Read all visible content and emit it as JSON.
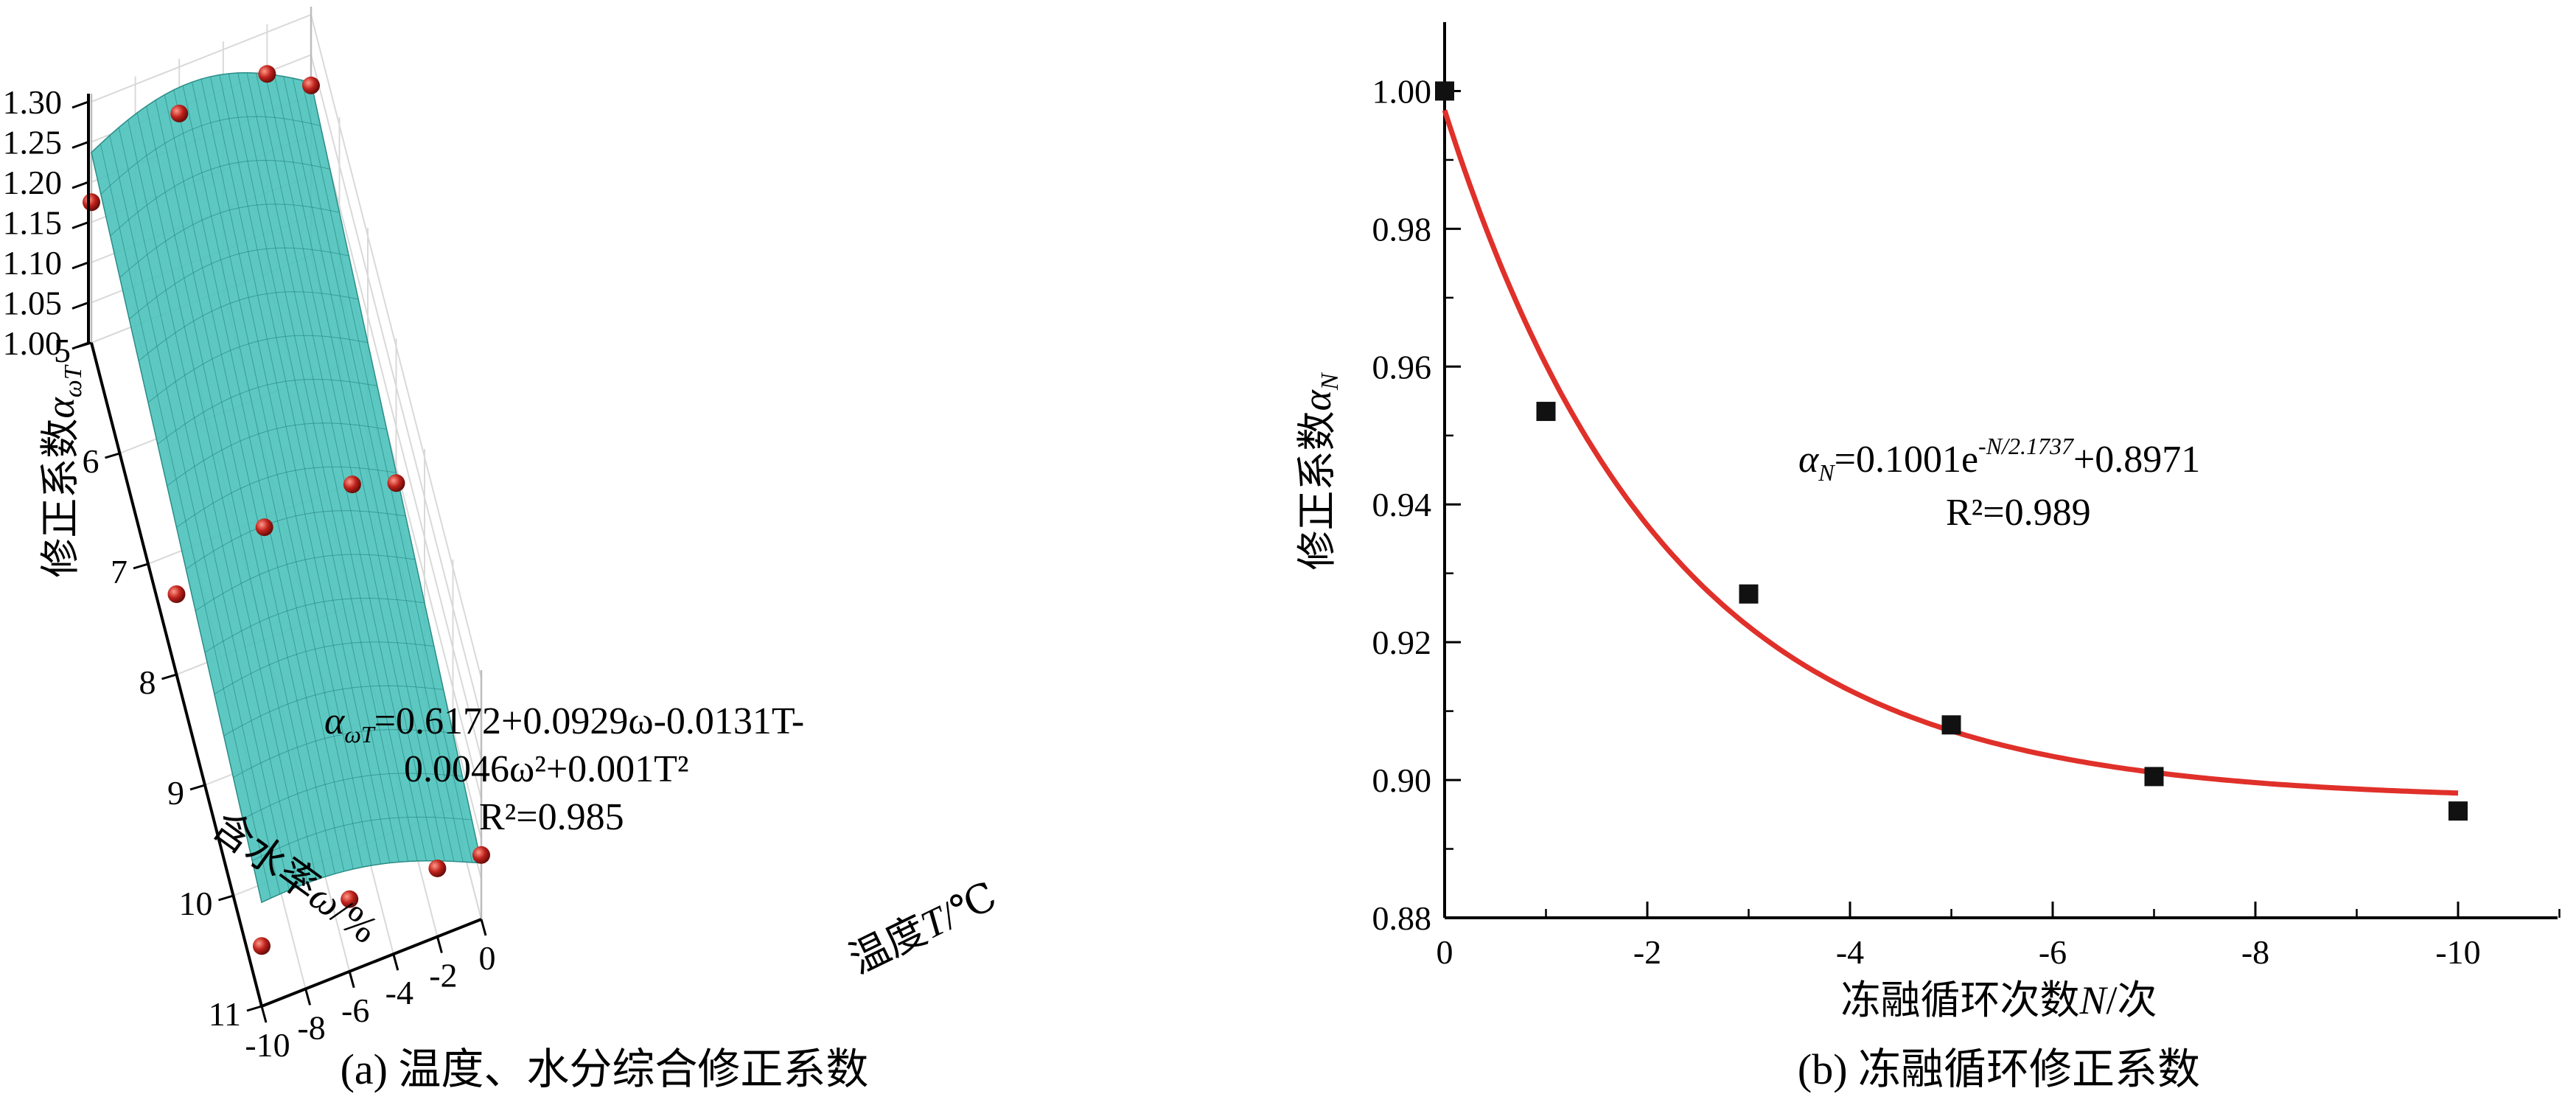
{
  "chart_data": [
    {
      "type": "3d-surface-scatter",
      "caption": "(a) 温度、水分综合修正系数",
      "xlabel": "含水率ω/%",
      "ylabel": "温度T/℃",
      "zlabel": "修正系数α_ωT",
      "xlabel_parts": {
        "pre": "含水率",
        "var": "ω",
        "post": "/%"
      },
      "ylabel_parts": {
        "pre": "温度",
        "var": "T",
        "post": "/℃"
      },
      "zlabel_parts": {
        "pre": "修正系数",
        "var": "α",
        "sub": "ωT"
      },
      "x_ticks": [
        "5",
        "6",
        "7",
        "8",
        "9",
        "10",
        "11"
      ],
      "y_ticks": [
        "-10",
        "-8",
        "-6",
        "-4",
        "-2",
        "0"
      ],
      "z_ticks": [
        "1.00",
        "1.05",
        "1.10",
        "1.15",
        "1.20",
        "1.25",
        "1.30"
      ],
      "xlim": [
        5,
        11
      ],
      "ylim": [
        -10,
        0
      ],
      "zlim": [
        1.0,
        1.3
      ],
      "surface_color": "#4fc3bd",
      "point_color": "#c0221c",
      "equation": {
        "lhs_var": "α",
        "lhs_sub": "ωT",
        "line1": "=0.6172+0.0929ω-0.0131T-",
        "line2": "0.0046ω²+0.001T²",
        "r2": "R²=0.985"
      },
      "points": [
        {
          "x": 5,
          "y": -10,
          "z": 1.175
        },
        {
          "x": 5,
          "y": -6,
          "z": 1.242
        },
        {
          "x": 5,
          "y": -2,
          "z": 1.248
        },
        {
          "x": 5,
          "y": 0,
          "z": 1.212
        },
        {
          "x": 8,
          "y": -10,
          "z": 1.1
        },
        {
          "x": 8,
          "y": -6,
          "z": 1.14
        },
        {
          "x": 8,
          "y": -2,
          "z": 1.15
        },
        {
          "x": 8,
          "y": 0,
          "z": 1.13
        },
        {
          "x": 11,
          "y": -10,
          "z": 1.075
        },
        {
          "x": 11,
          "y": -6,
          "z": 1.09
        },
        {
          "x": 11,
          "y": -2,
          "z": 1.085
        },
        {
          "x": 11,
          "y": 0,
          "z": 1.08
        }
      ]
    },
    {
      "type": "scatter",
      "caption": "(b) 冻融循环修正系数",
      "xlabel": "冻融循环次数N/次",
      "ylabel": "修正系数α_N",
      "xlabel_parts": {
        "pre": "冻融循环次数",
        "var": "N",
        "post": "/次"
      },
      "ylabel_parts": {
        "pre": "修正系数",
        "var": "α",
        "sub": "N"
      },
      "x_ticks": [
        "0",
        "-2",
        "-4",
        "-6",
        "-8",
        "-10"
      ],
      "y_ticks": [
        "0.88",
        "0.90",
        "0.92",
        "0.94",
        "0.96",
        "0.98",
        "1.00"
      ],
      "xlim": [
        0,
        -11.2
      ],
      "ylim": [
        0.88,
        1.01
      ],
      "marker_color": "#111111",
      "curve_color": "#e0302a",
      "x": [
        0,
        -1,
        -3,
        -5,
        -7,
        -10
      ],
      "y": [
        1.0,
        0.9535,
        0.927,
        0.908,
        0.9005,
        0.8955
      ],
      "fit": {
        "a": 0.1001,
        "b": 2.1737,
        "c": 0.8971,
        "x_range": [
          0,
          -10
        ]
      },
      "equation": {
        "lhs_var": "α",
        "lhs_sub": "N",
        "mid": "=0.1001e",
        "sup": "-N/2.1737",
        "tail": "+0.8971",
        "r2": "R²=0.989"
      }
    }
  ]
}
